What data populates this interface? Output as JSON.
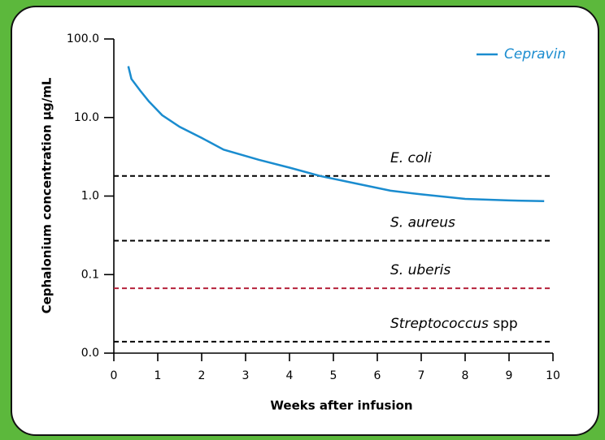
{
  "chart_data": {
    "type": "line",
    "x_label": "Weeks after infusion",
    "y_label": "Cephalonium concentration  µg/mL",
    "log_y": true,
    "xlim": [
      0,
      10
    ],
    "xticks": [
      0,
      1,
      2,
      3,
      4,
      5,
      6,
      7,
      8,
      9,
      10
    ],
    "ylim": [
      0.01,
      100
    ],
    "yticks": [
      {
        "value": 0.01,
        "label": "0.0"
      },
      {
        "value": 0.1,
        "label": "0.1"
      },
      {
        "value": 1,
        "label": "1.0"
      },
      {
        "value": 10,
        "label": "10.0"
      },
      {
        "value": 100,
        "label": "100.0"
      }
    ],
    "legend": "top-right",
    "series": [
      {
        "name": "Cepravin",
        "color": "#1a8ccf",
        "x": [
          0.33,
          0.4,
          0.6,
          0.8,
          1.1,
          1.5,
          2,
          2.5,
          3.3,
          4,
          4.7,
          5.5,
          6.3,
          7,
          8,
          9,
          9.8
        ],
        "values": [
          45,
          31,
          22,
          16,
          10.7,
          7.6,
          5.5,
          3.9,
          2.9,
          2.3,
          1.8,
          1.45,
          1.17,
          1.05,
          0.92,
          0.88,
          0.86
        ]
      }
    ],
    "reference_lines": [
      {
        "label": "E. coli",
        "value": 1.8,
        "color": "#000000"
      },
      {
        "label": "S. aureus",
        "value": 0.27,
        "color": "#000000"
      },
      {
        "label": "S. uberis",
        "value": 0.067,
        "color": "#b5213a"
      },
      {
        "label": "Streptococcus",
        "label_suffix": "spp",
        "value": 0.014,
        "color": "#000000"
      }
    ]
  }
}
